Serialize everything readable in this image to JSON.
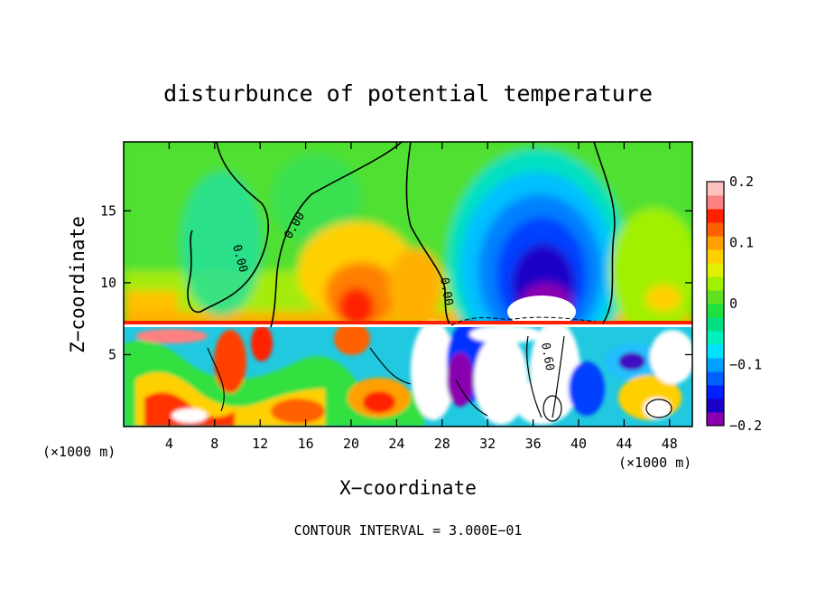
{
  "chart_data": {
    "type": "heatmap",
    "title": "disturbunce of potential temperature",
    "xlabel": "X−coordinate",
    "ylabel": "Z−coordinate",
    "x_unit_left": "(×1000 m)",
    "x_unit_right": "(×1000 m)",
    "footer": "CONTOUR INTERVAL = 3.000E−01",
    "xlim": [
      0,
      50
    ],
    "ylim": [
      0,
      19.8
    ],
    "x_ticks": [
      4,
      8,
      12,
      16,
      20,
      24,
      28,
      32,
      36,
      40,
      44,
      48
    ],
    "x_tick_labels": [
      "4",
      "8",
      "12",
      "16",
      "20",
      "24",
      "28",
      "32",
      "36",
      "40",
      "44",
      "48"
    ],
    "y_ticks": [
      5,
      10,
      15
    ],
    "y_tick_labels": [
      "5",
      "10",
      "15"
    ],
    "colorbar": {
      "range": [
        -0.2,
        0.2
      ],
      "ticks": [
        0.2,
        0.1,
        0,
        -0.1,
        -0.2
      ],
      "tick_labels": [
        "0.2",
        "0.1",
        "0",
        "−0.1",
        "−0.2"
      ],
      "colors": [
        "#8a00b0",
        "#1a00c8",
        "#0020ff",
        "#0060ff",
        "#00a0ff",
        "#00e0ff",
        "#00f0c0",
        "#00e080",
        "#20e040",
        "#60e020",
        "#a0f000",
        "#e0f000",
        "#ffd000",
        "#ffa000",
        "#ff6000",
        "#ff2000",
        "#ff8080",
        "#ffc0c0"
      ]
    },
    "contour_labels": [
      "0.00",
      "0.00",
      "0.00",
      "0.60"
    ],
    "features": [
      {
        "name": "cold anomaly core",
        "x": 35,
        "z": 11,
        "value": -0.2
      },
      {
        "name": "warm anomaly",
        "x": 21,
        "z": 10,
        "value": 0.15
      },
      {
        "name": "boundary layer",
        "z_top": 7.2
      }
    ]
  }
}
